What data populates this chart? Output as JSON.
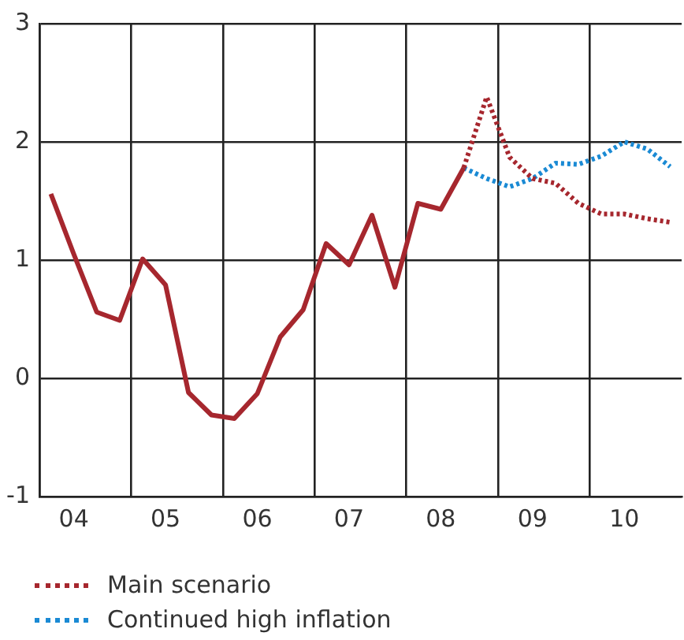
{
  "chart_data": {
    "type": "line",
    "categories": [
      null,
      "04",
      null,
      null,
      null,
      "05",
      null,
      null,
      null,
      "06",
      null,
      null,
      null,
      "07",
      null,
      null,
      null,
      "08",
      null,
      null,
      null,
      "09",
      null,
      null,
      null,
      "10",
      null,
      null
    ],
    "ylim": [
      -1,
      3
    ],
    "yticks": [
      -1,
      0,
      1,
      2,
      3
    ],
    "grid": true,
    "legend": "bottom",
    "marker": "none",
    "series": [
      {
        "color": "#a6272e",
        "line_style": "solid",
        "values": [
          1.56,
          1.05,
          0.56,
          0.49,
          1.01,
          0.79,
          -0.12,
          -0.31,
          -0.34,
          -0.13,
          0.35,
          0.58,
          1.14,
          0.96,
          1.38,
          0.77,
          1.48,
          1.43,
          1.78,
          null,
          null,
          null,
          null,
          null,
          null,
          null,
          null,
          null
        ]
      },
      {
        "name": "Main scenario",
        "color": "#a6272e",
        "line_style": "dotted",
        "values": [
          null,
          null,
          null,
          null,
          null,
          null,
          null,
          null,
          null,
          null,
          null,
          null,
          null,
          null,
          null,
          null,
          null,
          null,
          1.78,
          2.38,
          1.87,
          1.69,
          1.65,
          1.48,
          1.39,
          1.39,
          1.35,
          1.32
        ]
      },
      {
        "name": "Continued high inflation",
        "color": "#1a8ad4",
        "line_style": "dotted",
        "values": [
          null,
          null,
          null,
          null,
          null,
          null,
          null,
          null,
          null,
          null,
          null,
          null,
          null,
          null,
          null,
          null,
          null,
          null,
          1.78,
          1.69,
          1.62,
          1.69,
          1.82,
          1.81,
          1.88,
          2.0,
          1.94,
          1.79
        ]
      }
    ]
  }
}
